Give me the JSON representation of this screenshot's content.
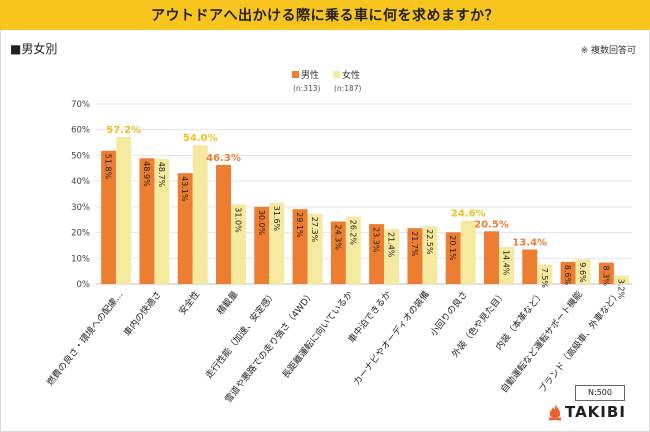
{
  "header": {
    "title": "アウトドアへ出かける際に乗る車に何を求めますか？"
  },
  "section_label": "■男女別",
  "note": "※ 複数回答可",
  "sample_size": "N:500",
  "logo_text": "TAKIBI",
  "colors": {
    "male": "#ed7d31",
    "female": "#f5e9a0",
    "highlight": "#f0c020",
    "title_bar": "#f7c51d"
  },
  "legend": [
    {
      "label": "男性",
      "sub": "(n:313)"
    },
    {
      "label": "女性",
      "sub": "(n:187)"
    }
  ],
  "chart_data": {
    "type": "bar",
    "ylim": [
      0,
      70
    ],
    "yticks": [
      "0%",
      "10%",
      "20%",
      "30%",
      "40%",
      "50%",
      "60%",
      "70%"
    ],
    "grid": true,
    "legend_position": "top-center",
    "categories": [
      "燃費の良さ・環境への配慮…",
      "車内の快適さ",
      "安全性",
      "積載量",
      "走行性能（加速、安定感）",
      "雪道や悪路での走り強さ（4WD）",
      "長距離運転に向いているか",
      "車中泊できるか",
      "カーナビやオーディオの装備",
      "小回りの良さ",
      "外装（色や見た目）",
      "内装（本革など）",
      "自動運転など運転サポート機能",
      "ブランド（高級車、外車など）"
    ],
    "series": [
      {
        "name": "男性",
        "values": [
          51.8,
          48.9,
          43.1,
          46.3,
          30.0,
          29.1,
          24.3,
          23.3,
          21.7,
          20.1,
          20.5,
          13.4,
          8.6,
          8.3
        ],
        "labels": [
          "51.8%",
          "48.9%",
          "43.1%",
          "46.3%",
          "30.0%",
          "29.1%",
          "24.3%",
          "23.3%",
          "21.7%",
          "20.1%",
          "20.5%",
          "13.4%",
          "8.6%",
          "8.3%"
        ]
      },
      {
        "name": "女性",
        "values": [
          57.2,
          48.7,
          54.0,
          31.0,
          31.6,
          27.3,
          26.2,
          21.4,
          22.5,
          24.6,
          14.4,
          7.5,
          9.6,
          3.2
        ],
        "labels": [
          "57.2%",
          "48.7%",
          "54.0%",
          "31.0%",
          "31.6%",
          "27.3%",
          "26.2%",
          "21.4%",
          "22.5%",
          "24.6%",
          "14.4%",
          "7.5%",
          "9.6%",
          "3.2%"
        ]
      }
    ],
    "highlights": [
      {
        "series": 1,
        "index": 0
      },
      {
        "series": 1,
        "index": 2
      },
      {
        "series": 0,
        "index": 3
      },
      {
        "series": 1,
        "index": 9
      },
      {
        "series": 0,
        "index": 10
      },
      {
        "series": 0,
        "index": 11
      }
    ]
  }
}
